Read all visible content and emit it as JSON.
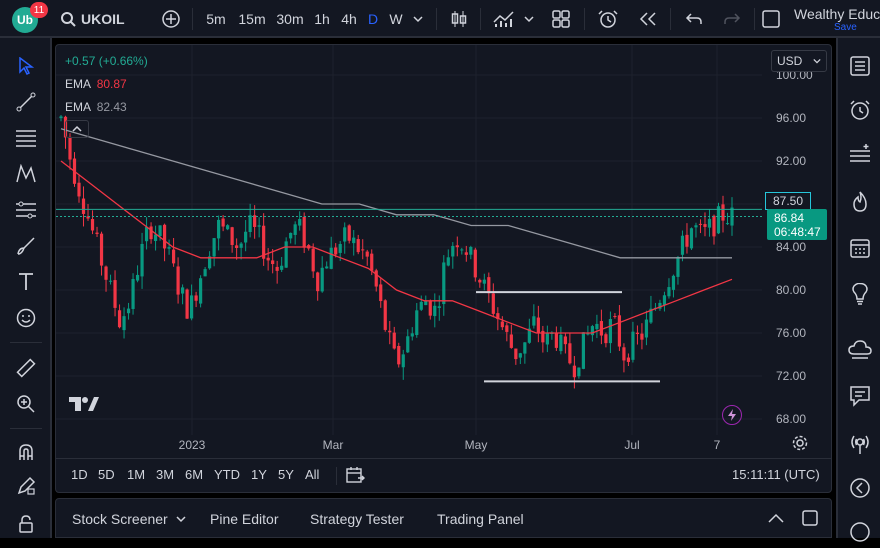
{
  "header": {
    "logo_badge": "11",
    "symbol": "UKOIL",
    "timeframes": [
      "5m",
      "15m",
      "30m",
      "1h",
      "4h",
      "D",
      "W"
    ],
    "active_timeframe": "D",
    "layout_name": "Wealthy Educ.",
    "save_label": "Save"
  },
  "legend": {
    "change": "+0.57 (+0.66%)",
    "ema1_label": "EMA",
    "ema1_value": "80.87",
    "ema2_label": "EMA",
    "ema2_value": "82.43"
  },
  "currency": "USD",
  "price_axis": {
    "top_label": "100.00",
    "ticks": [
      "96.00",
      "92.00",
      "88.00",
      "84.00",
      "80.00",
      "76.00",
      "72.00",
      "68.00"
    ],
    "alert_price": "87.50",
    "last_price": "86.84",
    "countdown": "06:48:47"
  },
  "time_axis": [
    "2023",
    "Mar",
    "May",
    "Jul",
    "7"
  ],
  "ranges": [
    "1D",
    "5D",
    "1M",
    "3M",
    "6M",
    "YTD",
    "1Y",
    "5Y",
    "All"
  ],
  "clock": "15:11:11 (UTC)",
  "bottom_tabs": [
    "Stock Screener",
    "Pine Editor",
    "Strategy Tester",
    "Trading Panel"
  ],
  "chart_data": {
    "type": "candlestick",
    "y_unit": "USD",
    "ylim": [
      68,
      100
    ],
    "x_labels": [
      "2023",
      "Mar",
      "May",
      "Jul",
      "7"
    ],
    "price_path": [
      96,
      92,
      89,
      86,
      83,
      80,
      77,
      79,
      83,
      86,
      85,
      83,
      80,
      78,
      81,
      84,
      86,
      85,
      84,
      86,
      85,
      83,
      82,
      85,
      86,
      84,
      81,
      83,
      84,
      85,
      84,
      83,
      80,
      76,
      73,
      75,
      78,
      79,
      78,
      83,
      85,
      84,
      82,
      80,
      78,
      76,
      74,
      75,
      77,
      75,
      76,
      74,
      73,
      75,
      77,
      76,
      77,
      74,
      75,
      76,
      78,
      80,
      82,
      84,
      86,
      85,
      86,
      87,
      86.84
    ],
    "ema_red_path": [
      92,
      90,
      88,
      86,
      84,
      83,
      83,
      83,
      84,
      84,
      83,
      82,
      80,
      79,
      79,
      78,
      77,
      76,
      76,
      76,
      77,
      78,
      79,
      80,
      81
    ],
    "ema_gray_path": [
      95,
      94,
      93,
      92,
      91,
      90,
      89,
      88,
      88,
      87,
      87,
      86,
      86,
      85,
      84,
      83,
      83,
      83,
      83
    ],
    "alert_line": 87.5,
    "last_price_line": 86.84,
    "support_line": 71.5,
    "resistance_line": 79.8,
    "series": [
      {
        "name": "EMA",
        "value": 80.87,
        "color": "#f23645"
      },
      {
        "name": "EMA",
        "value": 82.43,
        "color": "#b2b5be"
      }
    ]
  },
  "colors": {
    "up": "#089981",
    "down": "#f23645",
    "background": "#131722",
    "accent": "#2962ff"
  }
}
